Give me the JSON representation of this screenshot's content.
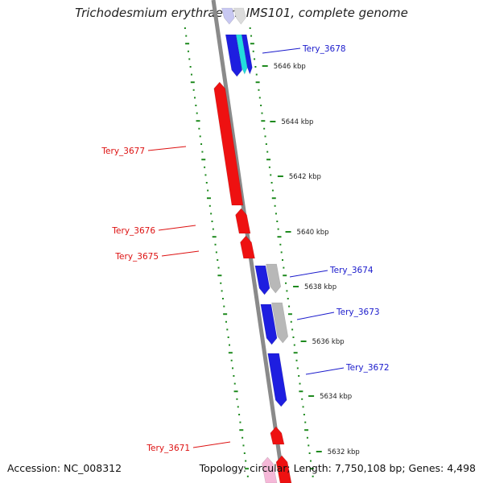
{
  "title": "Trichodesmium erythraeum IMS101, complete genome",
  "footer": {
    "accession": "Accession: NC_008312",
    "topology": "Topology: circular; Length: 7,750,108 bp; Genes: 4,498"
  },
  "colors": {
    "forward_gene": "#1e1ee0",
    "reverse_gene": "#ee1111",
    "cyan_gene": "#22dddd",
    "gray_gene": "#b8b8b8",
    "pink_gene": "#f5b8d8",
    "axis": "#8a8a8a",
    "ticks": "#1f8a1f",
    "forward_label": "#1a1acc",
    "reverse_label": "#dd1111"
  },
  "scale": {
    "unit": "kbp",
    "ticks": [
      {
        "label": "5646 kbp",
        "value": 5646
      },
      {
        "label": "5644 kbp",
        "value": 5644
      },
      {
        "label": "5642 kbp",
        "value": 5642
      },
      {
        "label": "5640 kbp",
        "value": 5640
      },
      {
        "label": "5638 kbp",
        "value": 5638
      },
      {
        "label": "5636 kbp",
        "value": 5636
      },
      {
        "label": "5634 kbp",
        "value": 5634
      },
      {
        "label": "5632 kbp",
        "value": 5632
      }
    ]
  },
  "gene_labels": [
    {
      "name": "Tery_3678",
      "strand": "forward"
    },
    {
      "name": "Tery_3677",
      "strand": "reverse"
    },
    {
      "name": "Tery_3676",
      "strand": "reverse"
    },
    {
      "name": "Tery_3675",
      "strand": "reverse"
    },
    {
      "name": "Tery_3674",
      "strand": "forward"
    },
    {
      "name": "Tery_3673",
      "strand": "forward"
    },
    {
      "name": "Tery_3672",
      "strand": "forward"
    },
    {
      "name": "Tery_3671",
      "strand": "reverse"
    }
  ]
}
